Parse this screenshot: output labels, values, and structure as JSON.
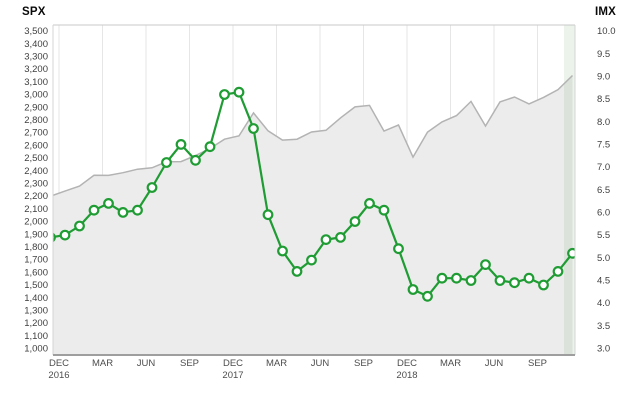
{
  "chart_data": {
    "type": "line",
    "description_visible_elements": "dual-axis monthly chart: gray area (SPX, left axis) and green open-circle line (IMX, right axis), light green band highlighting the latest month",
    "x": [
      "NOV 2016",
      "DEC 2016",
      "JAN 2017",
      "FEB 2017",
      "MAR 2017",
      "APR 2017",
      "MAY 2017",
      "JUN 2017",
      "JUL 2017",
      "AUG 2017",
      "SEP 2017",
      "OCT 2017",
      "NOV 2017",
      "DEC 2017",
      "JAN 2018",
      "FEB 2018",
      "MAR 2018",
      "APR 2018",
      "MAY 2018",
      "JUN 2018",
      "JUL 2018",
      "AUG 2018",
      "SEP 2018",
      "OCT 2018",
      "NOV 2018",
      "DEC 2018",
      "JAN 2019",
      "FEB 2019",
      "MAR 2019",
      "APR 2019",
      "MAY 2019",
      "JUN 2019",
      "JUL 2019",
      "AUG 2019",
      "SEP 2019",
      "OCT 2019",
      "NOV 2019"
    ],
    "series": [
      {
        "name": "SPX",
        "style": "area",
        "axis": "left",
        "line_color": "#b3b3b3",
        "fill_color": "#ececec",
        "values": [
          2199,
          2239,
          2279,
          2364,
          2363,
          2384,
          2412,
          2423,
          2470,
          2472,
          2519,
          2575,
          2648,
          2674,
          2855,
          2714,
          2641,
          2648,
          2705,
          2718,
          2816,
          2902,
          2914,
          2712,
          2760,
          2507,
          2704,
          2784,
          2834,
          2946,
          2752,
          2942,
          2980,
          2926,
          2977,
          3038,
          3150
        ]
      },
      {
        "name": "IMX",
        "style": "line_open_circle_markers",
        "axis": "right",
        "color": "#1f9c33",
        "marker_fill": "#ffffff",
        "values": [
          5.45,
          5.5,
          5.7,
          6.05,
          6.2,
          6.0,
          6.05,
          6.55,
          7.1,
          7.5,
          7.15,
          7.45,
          8.6,
          8.65,
          7.85,
          5.95,
          5.15,
          4.7,
          4.95,
          5.4,
          5.45,
          5.8,
          6.2,
          6.05,
          5.2,
          4.3,
          4.15,
          4.55,
          4.55,
          4.5,
          4.85,
          4.5,
          4.45,
          4.55,
          4.4,
          4.7,
          5.1
        ]
      }
    ],
    "left_axis": {
      "title": "SPX",
      "min": 1000,
      "max": 3500,
      "tick_step": 100,
      "tick_labels": [
        "3,500",
        "3,400",
        "3,300",
        "3,200",
        "3,100",
        "3,000",
        "2,900",
        "2,800",
        "2,700",
        "2,600",
        "2,500",
        "2,400",
        "2,300",
        "2,200",
        "2,100",
        "2,000",
        "1,900",
        "1,800",
        "1,700",
        "1,600",
        "1,500",
        "1,400",
        "1,300",
        "1,200",
        "1,100",
        "1,000"
      ]
    },
    "right_axis": {
      "title": "IMX",
      "min": 3.0,
      "max": 10.0,
      "tick_step": 0.5,
      "tick_labels": [
        "10.0",
        "9.5",
        "9.0",
        "8.5",
        "8.0",
        "7.5",
        "7.0",
        "6.5",
        "6.0",
        "5.5",
        "5.0",
        "4.5",
        "4.0",
        "3.5",
        "3.0"
      ]
    },
    "x_axis": {
      "tick_interval": "quarterly",
      "tick_labels": [
        {
          "month": "DEC",
          "year": "2016"
        },
        {
          "month": "MAR",
          "year": ""
        },
        {
          "month": "JUN",
          "year": ""
        },
        {
          "month": "SEP",
          "year": ""
        },
        {
          "month": "DEC",
          "year": "2017"
        },
        {
          "month": "MAR",
          "year": ""
        },
        {
          "month": "JUN",
          "year": ""
        },
        {
          "month": "SEP",
          "year": ""
        },
        {
          "month": "DEC",
          "year": "2018"
        },
        {
          "month": "MAR",
          "year": ""
        },
        {
          "month": "JUN",
          "year": ""
        },
        {
          "month": "SEP",
          "year": ""
        }
      ]
    },
    "grid": "vertical-quarterly-only",
    "legend": "none",
    "highlight_band": {
      "covers": "latest-month",
      "color": "#689f68",
      "opacity": 0.13
    }
  },
  "colors": {
    "background": "#ffffff",
    "gridline": "#e6e6e6",
    "border_top": "#c9c9c9",
    "border_sides": "#d4d4d4",
    "border_bottom": "#9e9e9e",
    "imx_green": "#1f9c33",
    "spx_area_fill": "#ececec",
    "spx_line": "#b3b3b3"
  }
}
